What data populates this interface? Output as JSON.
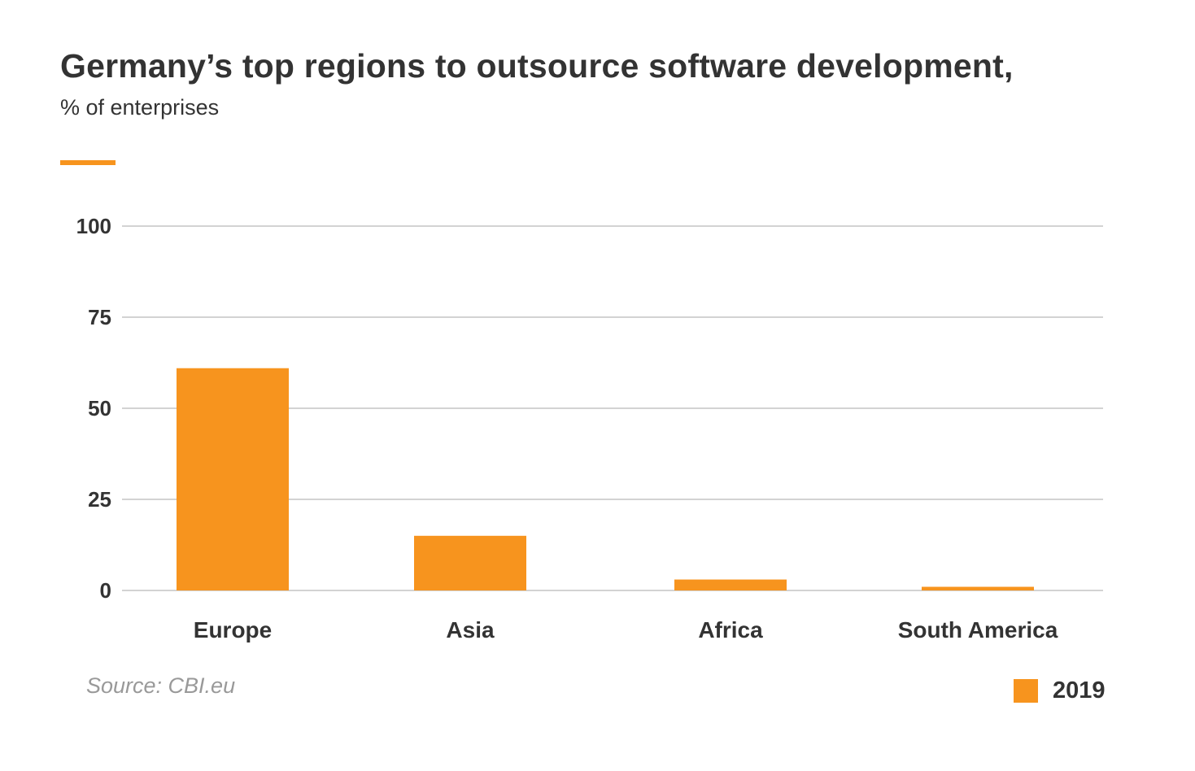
{
  "chart_data": {
    "type": "bar",
    "title": "Germany’s top regions to outsource software development,",
    "subtitle": "% of enterprises",
    "categories": [
      "Europe",
      "Asia",
      "Africa",
      "South America"
    ],
    "series": [
      {
        "name": "2019",
        "color": "#F7941E",
        "values": [
          61,
          15,
          3,
          1
        ]
      }
    ],
    "xlabel": "",
    "ylabel": "% of enterprises",
    "ylim": [
      0,
      100
    ],
    "yticks": [
      0,
      25,
      50,
      75,
      100
    ],
    "ytick_labels": [
      "0",
      "25",
      "50",
      "75",
      "100"
    ],
    "grid": true,
    "legend_position": "bottom-right",
    "source": "Source: CBI.eu"
  },
  "colors": {
    "accent": "#F7941E",
    "text": "#333333",
    "grid": "#D3D3D3",
    "source": "#999999"
  }
}
